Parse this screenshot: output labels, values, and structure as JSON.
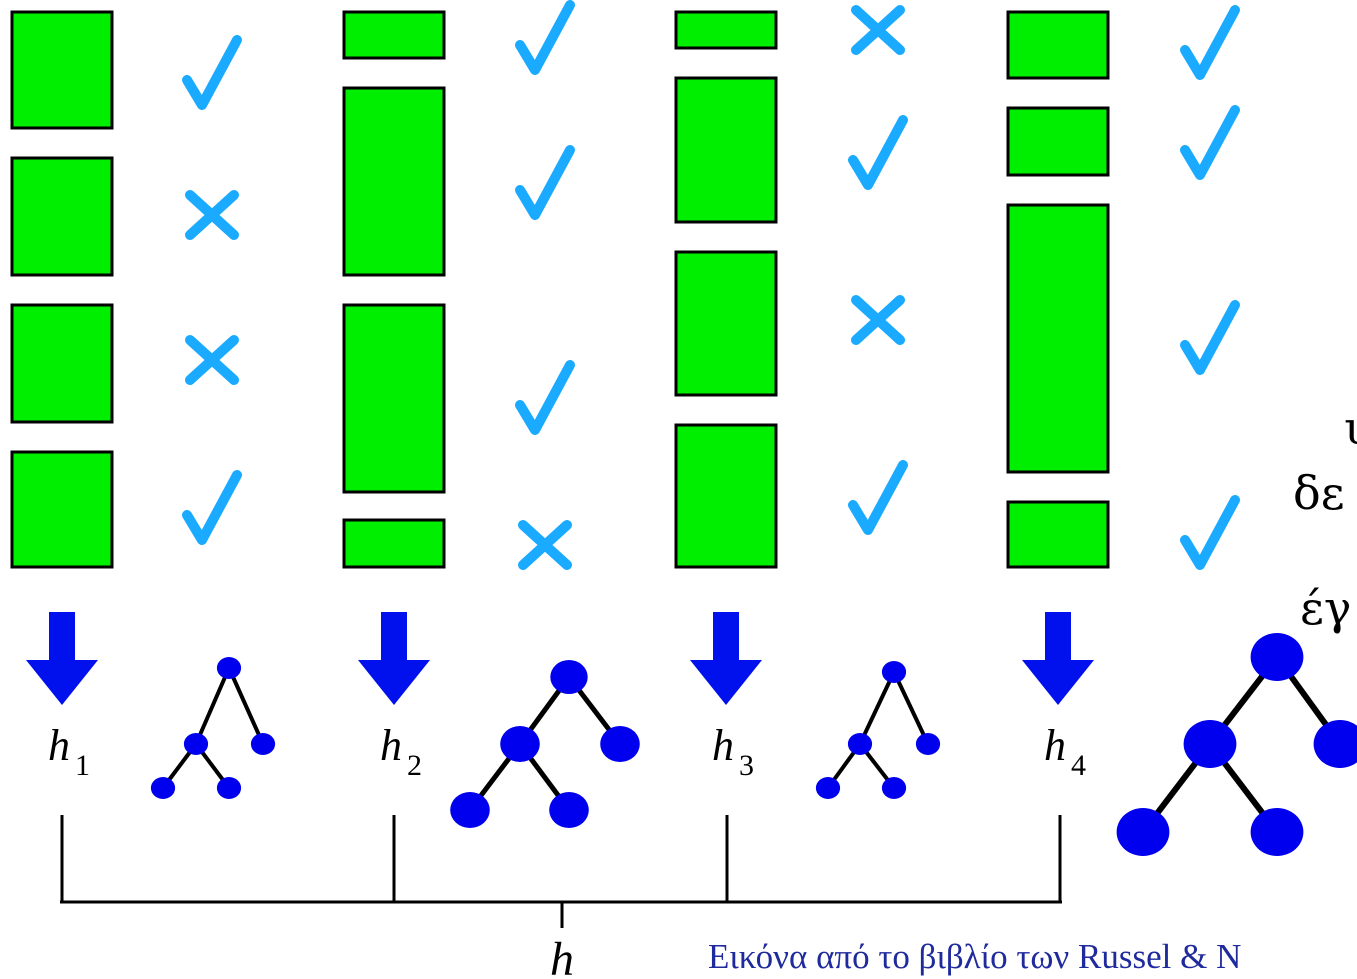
{
  "hypotheses": [
    {
      "label": "h",
      "subscript": "1",
      "marks": [
        "check",
        "cross",
        "cross",
        "check"
      ]
    },
    {
      "label": "h",
      "subscript": "2",
      "marks": [
        "check",
        "check",
        "check",
        "cross"
      ]
    },
    {
      "label": "h",
      "subscript": "3",
      "marks": [
        "cross",
        "check",
        "cross",
        "check"
      ]
    },
    {
      "label": "h",
      "subscript": "4",
      "marks": [
        "check",
        "check",
        "check",
        "check"
      ]
    }
  ],
  "combined_label": "h",
  "cut_text": [
    "υ",
    "δε",
    "έγ"
  ],
  "caption": "Εικόνα από το βιβλίο των Russel & N",
  "colors": {
    "box": "#00ee00",
    "mark": "#1aaaff",
    "arrow": "#0011ee",
    "tree": "#0000ee"
  },
  "icons": {
    "check": "checkmark-icon",
    "cross": "cross-icon",
    "arrow": "down-arrow-icon",
    "tree": "tree-icon"
  }
}
